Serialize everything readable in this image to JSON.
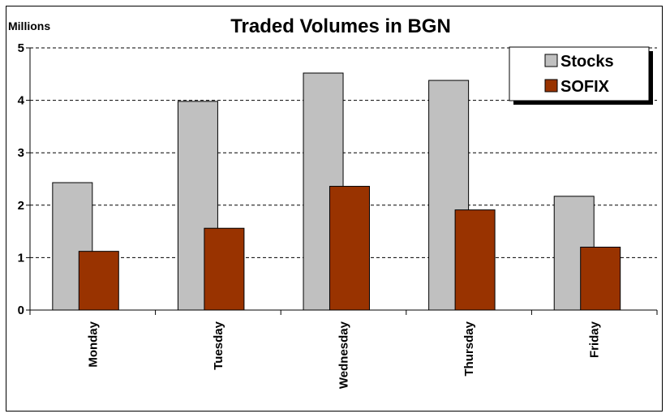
{
  "chart_data": {
    "type": "bar",
    "title": "Traded Volumes in BGN",
    "units_label": "Millions",
    "categories": [
      "Monday",
      "Tuesday",
      "Wednesday",
      "Thursday",
      "Friday"
    ],
    "series": [
      {
        "name": "Stocks",
        "color": "#c0c0c0",
        "values": [
          2.43,
          3.98,
          4.52,
          4.38,
          2.17
        ]
      },
      {
        "name": "SOFIX",
        "color": "#993300",
        "values": [
          1.12,
          1.56,
          2.36,
          1.91,
          1.2
        ]
      }
    ],
    "ylim": [
      0,
      5
    ],
    "yticks": [
      "0",
      "1",
      "2",
      "3",
      "4",
      "5"
    ],
    "grid": true,
    "legend_position": "top-right"
  }
}
